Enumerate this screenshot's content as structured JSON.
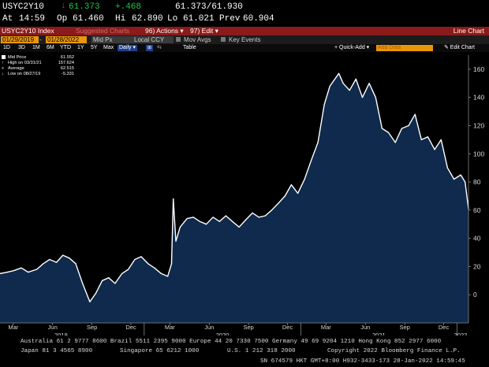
{
  "quote": {
    "ticker": "USYC2Y10",
    "arrow": "↓",
    "last": "61.373",
    "change": "+.468",
    "bid_ask": "61.373/61.930",
    "at_label": "At",
    "at_time": "14:59",
    "open_label": "Op",
    "open": "61.460",
    "high_label": "Hi",
    "high": "62.890",
    "low_label": "Lo",
    "low": "61.021",
    "prev_label": "Prev",
    "prev": "60.904"
  },
  "toolbar": {
    "security": "USYC2Y10 Index",
    "suggested": "Suggested Charts",
    "actions": "96) Actions ▾",
    "edit": "97) Edit ▾",
    "chart_type": "Line Chart",
    "start_date": "01/29/2019",
    "end_date": "01/28/2022",
    "field": "Mid Px",
    "currency": "Local CCY",
    "mov_avgs": "Mov Avgs",
    "key_events": "Key Events",
    "periods": [
      "1D",
      "3D",
      "1M",
      "6M",
      "YTD",
      "1Y",
      "5Y",
      "Max"
    ],
    "frequency": "Daily ▾",
    "table": "Table",
    "quick_add": "+ Quick-Add ▾",
    "add_data": "Add Data",
    "edit_chart": "✎ Edit Chart"
  },
  "legend": {
    "title": "Mid Price",
    "title_value": "61.552",
    "high_label": "High on 03/31/21",
    "high_value": "157.624",
    "avg_label": "Average",
    "avg_value": "62.515",
    "low_label": "Low on 08/27/19",
    "low_value": "-5.331"
  },
  "chart_data": {
    "type": "area",
    "title": "USYC2Y10 Index",
    "xlabel": "",
    "ylabel": "",
    "x_range": [
      "2019-01-29",
      "2022-01-28"
    ],
    "ylim": [
      -20,
      170
    ],
    "yticks": [
      0,
      20,
      40,
      60,
      80,
      100,
      120,
      140,
      160
    ],
    "month_ticks": [
      "Mar",
      "Jun",
      "Sep",
      "Dec",
      "Mar",
      "Jun",
      "Sep",
      "Dec",
      "Mar",
      "Jun",
      "Sep",
      "Dec"
    ],
    "year_labels": [
      "2019",
      "2020",
      "2021",
      "2022"
    ],
    "grid": false,
    "line_color": "#ffffff",
    "fill_color": "#0f2a4c",
    "series": [
      {
        "name": "Mid Price",
        "x": [
          "2019-01-29",
          "2019-02-15",
          "2019-03-01",
          "2019-03-20",
          "2019-04-05",
          "2019-04-25",
          "2019-05-10",
          "2019-05-25",
          "2019-06-10",
          "2019-06-25",
          "2019-07-10",
          "2019-07-25",
          "2019-08-10",
          "2019-08-27",
          "2019-09-10",
          "2019-09-25",
          "2019-10-10",
          "2019-10-25",
          "2019-11-10",
          "2019-11-25",
          "2019-12-10",
          "2019-12-25",
          "2020-01-10",
          "2020-01-25",
          "2020-02-10",
          "2020-02-25",
          "2020-03-05",
          "2020-03-09",
          "2020-03-15",
          "2020-03-25",
          "2020-04-10",
          "2020-04-25",
          "2020-05-10",
          "2020-05-25",
          "2020-06-10",
          "2020-06-25",
          "2020-07-10",
          "2020-07-25",
          "2020-08-10",
          "2020-08-25",
          "2020-09-10",
          "2020-09-25",
          "2020-10-10",
          "2020-10-25",
          "2020-11-10",
          "2020-11-25",
          "2020-12-10",
          "2020-12-25",
          "2021-01-10",
          "2021-01-25",
          "2021-02-10",
          "2021-02-25",
          "2021-03-10",
          "2021-03-31",
          "2021-04-10",
          "2021-04-25",
          "2021-05-10",
          "2021-05-25",
          "2021-06-10",
          "2021-06-25",
          "2021-07-10",
          "2021-07-25",
          "2021-08-10",
          "2021-08-25",
          "2021-09-10",
          "2021-09-25",
          "2021-10-10",
          "2021-10-25",
          "2021-11-10",
          "2021-11-25",
          "2021-12-10",
          "2021-12-25",
          "2022-01-10",
          "2022-01-20",
          "2022-01-28"
        ],
        "values": [
          15,
          16,
          17,
          19,
          16,
          18,
          22,
          25,
          23,
          28,
          26,
          22,
          8,
          -5,
          1,
          10,
          12,
          8,
          15,
          18,
          25,
          27,
          22,
          19,
          15,
          13,
          22,
          68,
          38,
          48,
          54,
          55,
          52,
          50,
          55,
          52,
          56,
          52,
          48,
          53,
          58,
          55,
          56,
          60,
          65,
          70,
          78,
          72,
          82,
          95,
          108,
          135,
          148,
          157,
          150,
          145,
          153,
          140,
          150,
          140,
          118,
          115,
          108,
          118,
          120,
          128,
          110,
          112,
          103,
          110,
          90,
          82,
          85,
          80,
          61
        ]
      }
    ]
  },
  "footer": {
    "line1_left": "Australia 61 2 9777 8600  Brazil 5511 2395 9000  Europe 44 20 7330 7500  Germany 49 69 9204 1210  Hong Kong 852 2977 6000",
    "line2_left": "Japan 81 3 4565 8900",
    "line2_mid": "Singapore 65 6212 1000",
    "line2_us": "U.S. 1 212 318 2000",
    "copyright": "Copyright 2022 Bloomberg Finance L.P.",
    "line3": "SN 674579 HKT  GMT+8:00 H932-3433-173 28-Jan-2022 14:59:45"
  }
}
